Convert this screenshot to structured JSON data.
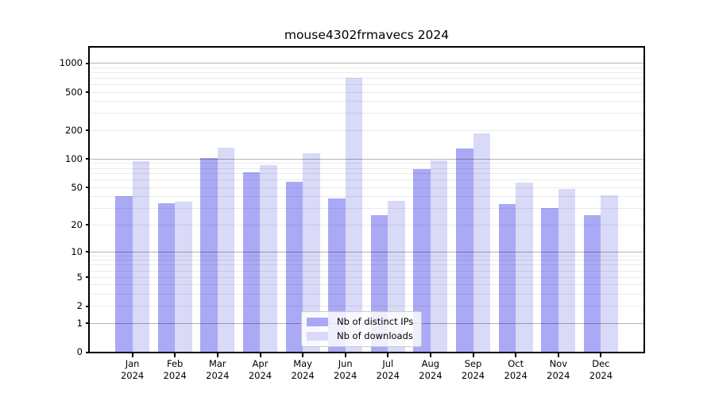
{
  "title": "mouse4302frmavecs 2024",
  "chart_data": {
    "type": "bar",
    "title": "mouse4302frmavecs 2024",
    "yscale": "log1p",
    "grid": true,
    "legend_position": "lower center",
    "categories": [
      "Jan",
      "Feb",
      "Mar",
      "Apr",
      "May",
      "Jun",
      "Jul",
      "Aug",
      "Sep",
      "Oct",
      "Nov",
      "Dec"
    ],
    "year": "2024",
    "y_ticks": [
      1000,
      500,
      200,
      100,
      50,
      20,
      10,
      5,
      2,
      1,
      0
    ],
    "ylim": [
      0,
      1400
    ],
    "series": [
      {
        "key": "distinct-ips",
        "name": "Nb of distinct IPs",
        "color": "#a9a9f5",
        "values": [
          40,
          34,
          102,
          72,
          57,
          38,
          25,
          78,
          127,
          33,
          30,
          25
        ]
      },
      {
        "key": "downloads",
        "name": "Nb of downloads",
        "color": "#d9d9f8",
        "values": [
          95,
          35,
          130,
          85,
          113,
          700,
          36,
          96,
          185,
          56,
          48,
          41
        ]
      }
    ]
  }
}
